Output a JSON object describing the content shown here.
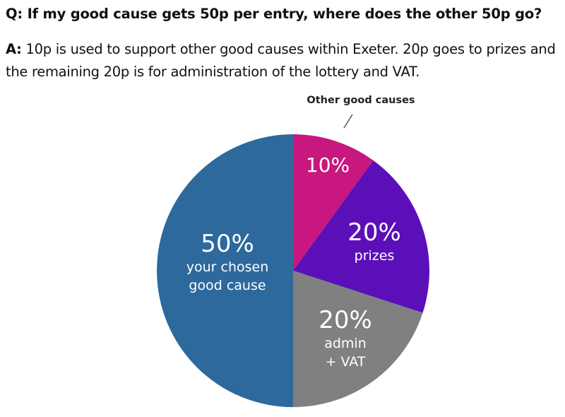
{
  "question": "Q: If my good cause gets 50p per entry, where does the other 50p go?",
  "answer_prefix": "A:",
  "answer_text": " 10p is used to support other good causes within Exeter. 20p goes to prizes and the remaining 20p is for administration of the lottery and VAT.",
  "chart_data": {
    "type": "pie",
    "slices": [
      {
        "label_pct": "10%",
        "label_lines": [],
        "value": 10,
        "color": "#c8177e"
      },
      {
        "label_pct": "20%",
        "label_lines": [
          "prizes"
        ],
        "value": 20,
        "color": "#5b0fb9"
      },
      {
        "label_pct": "20%",
        "label_lines": [
          "admin",
          "+ VAT"
        ],
        "value": 20,
        "color": "#808080"
      },
      {
        "label_pct": "50%",
        "label_lines": [
          "your chosen",
          "good cause"
        ],
        "value": 50,
        "color": "#2d699c"
      }
    ],
    "callout": "Other good causes"
  }
}
